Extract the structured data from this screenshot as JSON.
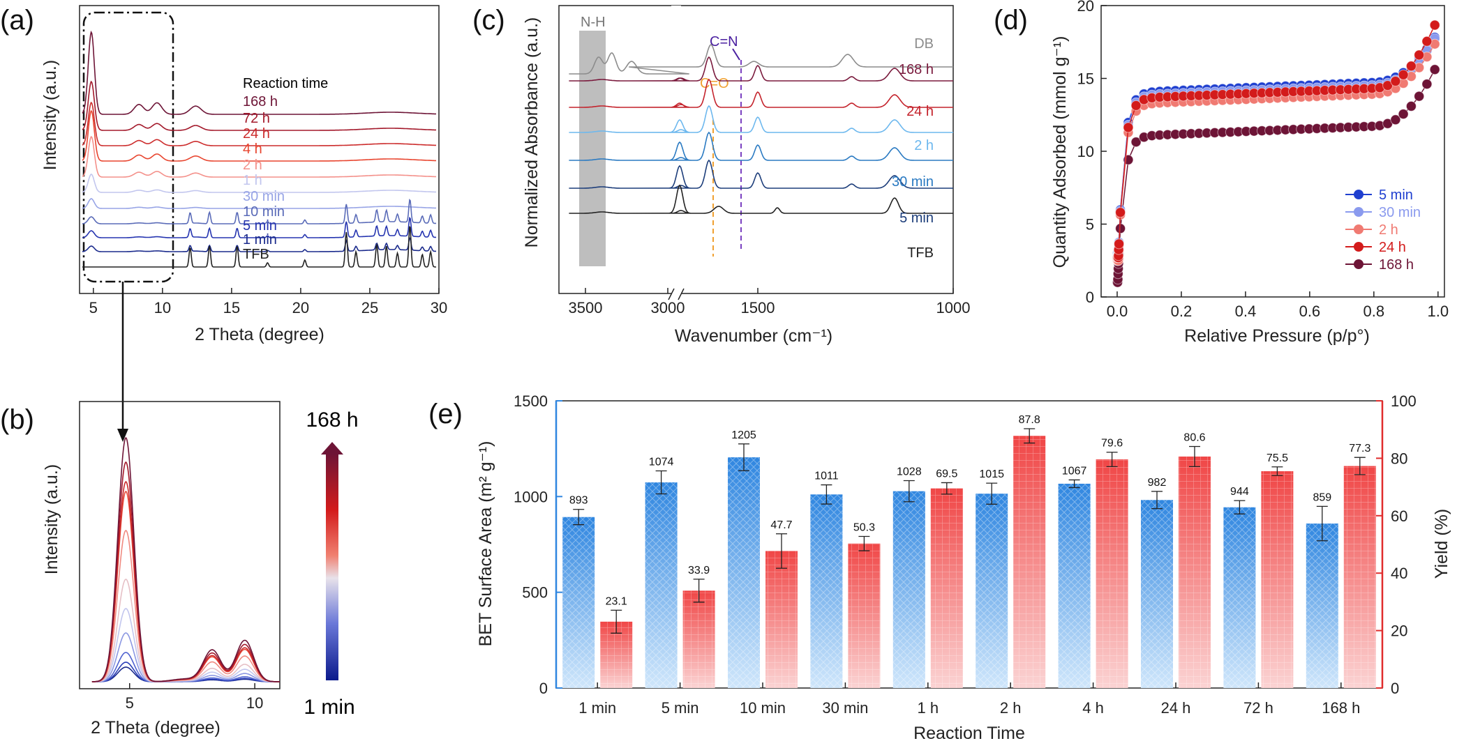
{
  "panel_labels": {
    "a": "(a)",
    "b": "(b)",
    "c": "(c)",
    "d": "(d)",
    "e": "(e)"
  },
  "chart_data": [
    {
      "panel": "a",
      "type": "line",
      "xlabel": "2 Theta (degree)",
      "ylabel": "Intensity (a.u.)",
      "xlim": [
        4,
        30
      ],
      "xticks": [
        5,
        10,
        15,
        20,
        25,
        30
      ],
      "legend_title": "Reaction time",
      "series": [
        {
          "name": "168 h",
          "color": "#6d1436"
        },
        {
          "name": "72 h",
          "color": "#a3182a"
        },
        {
          "name": "24 h",
          "color": "#cc2b2b"
        },
        {
          "name": "4 h",
          "color": "#e8452f"
        },
        {
          "name": "2 h",
          "color": "#f4908a"
        },
        {
          "name": "1 h",
          "color": "#c2c6ee"
        },
        {
          "name": "30 min",
          "color": "#97a4e6"
        },
        {
          "name": "10 min",
          "color": "#5a6bb8"
        },
        {
          "name": "5 min",
          "color": "#2534b0"
        },
        {
          "name": "1 min",
          "color": "#1a2a8c"
        },
        {
          "name": "TFB",
          "color": "#222222"
        }
      ],
      "peaks_2theta": [
        4.8,
        8.3,
        9.6,
        12.4
      ]
    },
    {
      "panel": "b",
      "type": "line",
      "xlabel": "2 Theta (degree)",
      "ylabel": "Intensity (a.u.)",
      "xlim": [
        3,
        11
      ],
      "xticks": [
        5,
        10
      ],
      "colorbar_top": "168 h",
      "colorbar_bottom": "1 min",
      "peak_heights": [
        0.06,
        0.08,
        0.12,
        0.2,
        0.3,
        0.42,
        0.62,
        0.78,
        0.82,
        0.9,
        1.0
      ]
    },
    {
      "panel": "c",
      "type": "line",
      "xlabel": "Wavenumber (cm⁻¹)",
      "ylabel": "Normalized Absorbance (a.u.)",
      "xticks": [
        3500,
        3000,
        1500,
        1000
      ],
      "annotations": [
        "N-H",
        "C=N",
        "C=O"
      ],
      "series": [
        {
          "name": "DB",
          "color": "#8c8c8c"
        },
        {
          "name": "168 h",
          "color": "#7a1a3d"
        },
        {
          "name": "24 h",
          "color": "#c4222b"
        },
        {
          "name": "2 h",
          "color": "#6db8ee"
        },
        {
          "name": "30 min",
          "color": "#2a7ac2"
        },
        {
          "name": "5 min",
          "color": "#1c3d7a"
        },
        {
          "name": "TFB",
          "color": "#222222"
        }
      ]
    },
    {
      "panel": "d",
      "type": "scatter",
      "xlabel": "Relative Pressure (p/p°)",
      "ylabel": "Quantity Adsorbed (mmol g⁻¹)",
      "xlim": [
        -0.05,
        1.02
      ],
      "ylim": [
        0,
        20
      ],
      "xticks": [
        "0.0",
        "0.2",
        "0.4",
        "0.6",
        "0.8",
        "1.0"
      ],
      "yticks": [
        "0",
        "5",
        "10",
        "15",
        "20"
      ],
      "legend": "bottom-right",
      "series": [
        {
          "name": "5  min",
          "color": "#1f3fcf",
          "plateau": 14.0,
          "start": 3.0,
          "end": 17.5
        },
        {
          "name": "30 min",
          "color": "#8a9aee",
          "plateau": 13.8,
          "start": 2.8,
          "end": 17.4
        },
        {
          "name": "2 h",
          "color": "#f07a72",
          "plateau": 13.2,
          "start": 2.5,
          "end": 17.0
        },
        {
          "name": "24 h",
          "color": "#d31b1b",
          "plateau": 13.6,
          "start": 2.7,
          "end": 18.2
        },
        {
          "name": "168 h",
          "color": "#6d1436",
          "plateau": 11.0,
          "start": 1.0,
          "end": 15.2
        }
      ]
    },
    {
      "panel": "e",
      "type": "bar",
      "xlabel": "Reaction Time",
      "ylabel_left": "BET Surface Area (m² g⁻¹)",
      "ylabel_right": "Yield (%)",
      "ylim_left": [
        0,
        1500
      ],
      "ylim_right": [
        0,
        100
      ],
      "yticks_left": [
        "0",
        "500",
        "1000",
        "1500"
      ],
      "yticks_right": [
        "0",
        "20",
        "40",
        "60",
        "80",
        "100"
      ],
      "categories": [
        "1 min",
        "5 min",
        "10 min",
        "30 min",
        "1 h",
        "2 h",
        "4 h",
        "24 h",
        "72 h",
        "168 h"
      ],
      "series": [
        {
          "name": "BET",
          "axis": "left",
          "color": "#2f86e0",
          "values": [
            893,
            1074,
            1205,
            1011,
            1028,
            1015,
            1067,
            982,
            944,
            859
          ],
          "errors": [
            40,
            60,
            70,
            50,
            55,
            55,
            20,
            45,
            35,
            90
          ],
          "labels": [
            "893",
            "1074",
            "1205",
            "1011",
            "1028",
            "1015",
            "1067",
            "982",
            "944",
            "859"
          ]
        },
        {
          "name": "Yield",
          "axis": "right",
          "color": "#f04646",
          "values": [
            23.1,
            33.9,
            47.7,
            50.3,
            69.5,
            87.8,
            79.6,
            80.6,
            75.5,
            77.3
          ],
          "errors": [
            4.0,
            4.0,
            6.0,
            2.5,
            2.0,
            2.5,
            2.5,
            3.5,
            1.5,
            3.0
          ],
          "labels": [
            "23.1",
            "33.9",
            "47.7",
            "50.3",
            "69.5",
            "87.8",
            "79.6",
            "80.6",
            "75.5",
            "77.3"
          ]
        }
      ]
    }
  ]
}
